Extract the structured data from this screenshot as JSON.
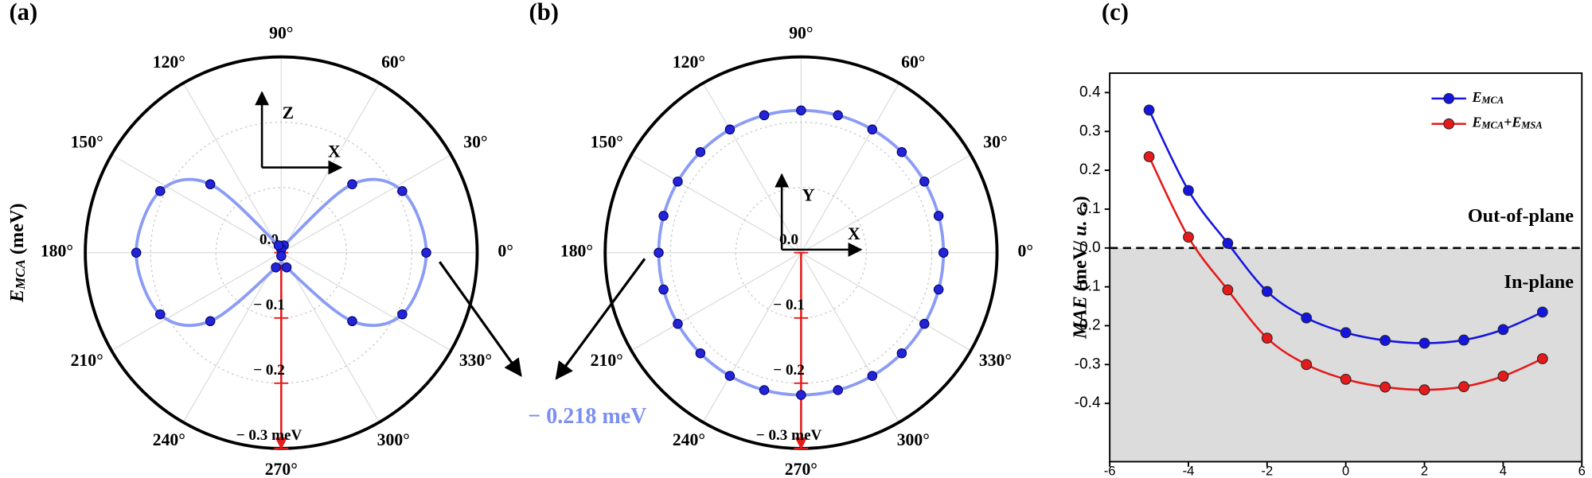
{
  "chart_data": [
    {
      "type": "polar",
      "panel_label": "(a)",
      "ylabel": [
        "E",
        "MCA",
        " (meV)"
      ],
      "theta": [
        0,
        27,
        44,
        70,
        90,
        110,
        136,
        153,
        180,
        207,
        224,
        250,
        270,
        290,
        316,
        333
      ],
      "values": [
        -0.222,
        -0.208,
        -0.151,
        -0.012,
        -0.005,
        -0.012,
        -0.151,
        -0.208,
        -0.222,
        -0.208,
        -0.151,
        -0.024,
        -0.005,
        -0.024,
        -0.151,
        -0.208
      ],
      "color": "#2323d8",
      "line_color": "#8a9cf5",
      "axis_color": "#e51a1a",
      "rlim": [
        0,
        -0.3
      ],
      "rticks": [
        {
          "value": 0,
          "label": "0.0"
        },
        {
          "value": -0.1,
          "label": "− 0.1"
        },
        {
          "value": -0.2,
          "label": "− 0.2"
        },
        {
          "value": -0.3,
          "label": "− 0.3 meV"
        }
      ],
      "thetaticks": [
        {
          "value": 0,
          "label": "0°"
        },
        {
          "value": 30,
          "label": "30°"
        },
        {
          "value": 60,
          "label": "60°"
        },
        {
          "value": 90,
          "label": "90°"
        },
        {
          "value": 120,
          "label": "120°"
        },
        {
          "value": 150,
          "label": "150°"
        },
        {
          "value": 180,
          "label": "180°"
        },
        {
          "value": 210,
          "label": "210°"
        },
        {
          "value": 240,
          "label": "240°"
        },
        {
          "value": 270,
          "label": "270°"
        },
        {
          "value": 300,
          "label": "300°"
        },
        {
          "value": 330,
          "label": "330°"
        }
      ],
      "axis_labels": [
        "Z",
        "X"
      ],
      "grid": true
    },
    {
      "type": "polar",
      "panel_label": "(b)",
      "theta": [
        0,
        15,
        30,
        45,
        60,
        75,
        90,
        105,
        120,
        135,
        150,
        165,
        180,
        195,
        210,
        225,
        240,
        255,
        270,
        285,
        300,
        315,
        330,
        345
      ],
      "values": [
        -0.218,
        -0.218,
        -0.218,
        -0.218,
        -0.218,
        -0.218,
        -0.218,
        -0.218,
        -0.218,
        -0.218,
        -0.218,
        -0.218,
        -0.218,
        -0.218,
        -0.218,
        -0.218,
        -0.218,
        -0.218,
        -0.218,
        -0.218,
        -0.218,
        -0.218,
        -0.218,
        -0.218
      ],
      "color": "#2323d8",
      "line_color": "#8a9cf5",
      "axis_color": "#e51a1a",
      "rlim": [
        0,
        -0.3
      ],
      "rticks": [
        {
          "value": 0,
          "label": "0.0"
        },
        {
          "value": -0.1,
          "label": "− 0.1"
        },
        {
          "value": -0.2,
          "label": "− 0.2"
        },
        {
          "value": -0.3,
          "label": "− 0.3 meV"
        }
      ],
      "thetaticks": [
        {
          "value": 0,
          "label": "0°"
        },
        {
          "value": 30,
          "label": "30°"
        },
        {
          "value": 60,
          "label": "60°"
        },
        {
          "value": 90,
          "label": "90°"
        },
        {
          "value": 120,
          "label": "120°"
        },
        {
          "value": 150,
          "label": "150°"
        },
        {
          "value": 180,
          "label": "180°"
        },
        {
          "value": 210,
          "label": "210°"
        },
        {
          "value": 240,
          "label": "240°"
        },
        {
          "value": 270,
          "label": "270°"
        },
        {
          "value": 300,
          "label": "300°"
        },
        {
          "value": 330,
          "label": "330°"
        }
      ],
      "axis_labels": [
        "Y",
        "X"
      ],
      "annotation": "− 0.218 meV",
      "grid": true
    },
    {
      "type": "line",
      "panel_label": "(c)",
      "ylabel": [
        "MAE",
        " (meV/ ",
        "u. c.",
        ")"
      ],
      "x": [
        -5,
        -4,
        -3,
        -2,
        -1,
        0,
        1,
        2,
        3,
        4,
        5
      ],
      "series": [
        {
          "name": [
            "E",
            "MCA"
          ],
          "color": "#1515e0",
          "values": [
            0.355,
            0.148,
            0.012,
            -0.112,
            -0.18,
            -0.218,
            -0.238,
            -0.245,
            -0.237,
            -0.21,
            -0.165
          ]
        },
        {
          "name": [
            "E",
            "MCA",
            "+E",
            "MSA"
          ],
          "color": "#e51a1a",
          "values": [
            0.235,
            0.028,
            -0.108,
            -0.232,
            -0.3,
            -0.338,
            -0.358,
            -0.365,
            -0.357,
            -0.33,
            -0.285
          ]
        }
      ],
      "xlim": [
        -6,
        6
      ],
      "xticks": [
        -6,
        -4,
        -2,
        0,
        2,
        4,
        6
      ],
      "ylim": [
        -0.55,
        0.45
      ],
      "yticks": [
        0.4,
        0.3,
        0.2,
        0.1,
        {
          "value": 0,
          "label": "0.0"
        },
        -0.1,
        -0.2,
        -0.3,
        -0.4
      ],
      "annotations": [
        "Out-of-plane",
        "In-plane"
      ],
      "legend": "upper right"
    }
  ]
}
